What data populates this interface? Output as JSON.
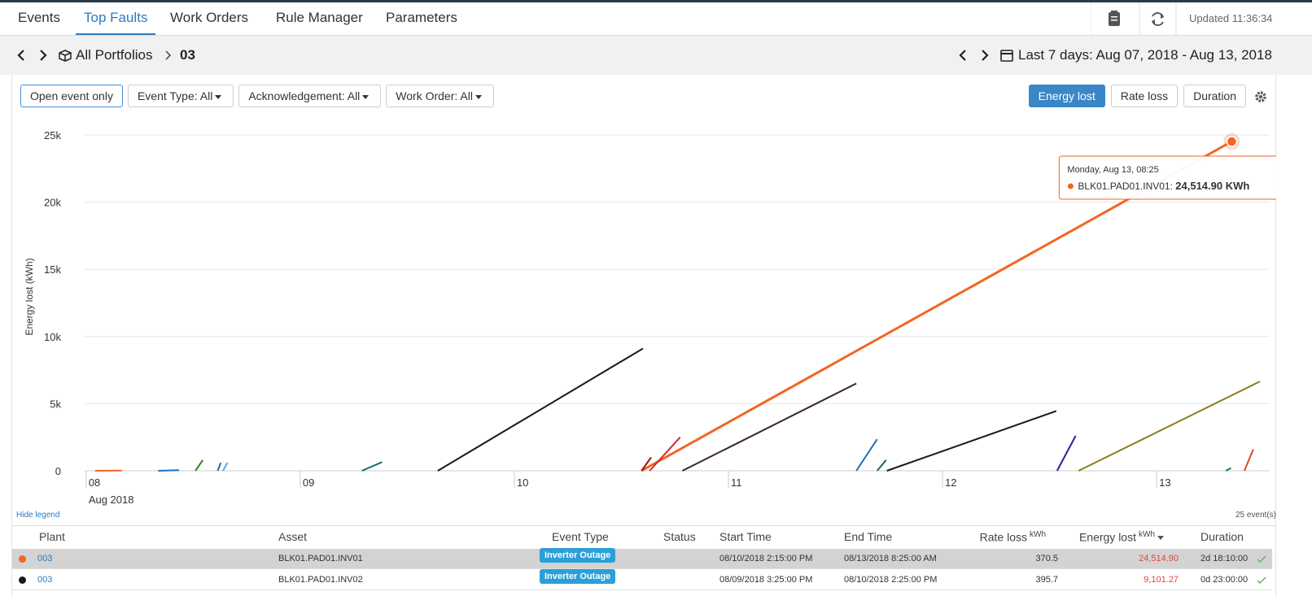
{
  "nav": {
    "tabs": [
      "Events",
      "Top Faults",
      "Work Orders",
      "Rule Manager",
      "Parameters"
    ],
    "active": 1,
    "updated": "Updated 11:36:34"
  },
  "breadcrumb": {
    "root": "All Portfolios",
    "current": "03"
  },
  "date_range": "Last 7 days: Aug 07, 2018 - Aug 13, 2018",
  "filters": [
    "Open event only",
    "Event Type: All",
    "Acknowledgement: All",
    "Work Order: All"
  ],
  "metrics": [
    "Energy lost",
    "Rate loss",
    "Duration"
  ],
  "active_metric": 0,
  "chart_data": {
    "type": "line",
    "ylabel": "Energy lost (kWh)",
    "xlabel": "Aug 2018",
    "xlim": [
      "2018-08-07T23:50",
      "2018-08-13T12:40"
    ],
    "xticks": [
      {
        "value": "2018-08-08T00:00",
        "label": "08"
      },
      {
        "value": "2018-08-09T00:00",
        "label": "09"
      },
      {
        "value": "2018-08-10T00:00",
        "label": "10"
      },
      {
        "value": "2018-08-11T00:00",
        "label": "11"
      },
      {
        "value": "2018-08-12T00:00",
        "label": "12"
      },
      {
        "value": "2018-08-13T00:00",
        "label": "13"
      }
    ],
    "ylim": [
      0,
      25000
    ],
    "yticks": [
      0,
      {
        "value": 5000,
        "label": "5k"
      },
      {
        "value": 10000,
        "label": "10k"
      },
      {
        "value": 15000,
        "label": "15k"
      },
      {
        "value": 20000,
        "label": "20k"
      },
      {
        "value": 25000,
        "label": "25k"
      }
    ],
    "grid": true,
    "series": [
      {
        "name": "BLK01.PAD01.INV01",
        "color": "#f26522",
        "x": [
          "2018-08-10T14:15",
          "2018-08-13T08:25"
        ],
        "values": [
          0,
          24514.9
        ]
      },
      {
        "name": "BLK01.PAD01.INV02",
        "color": "#1a1a1a",
        "x": [
          "2018-08-09T15:25",
          "2018-08-10T14:25"
        ],
        "values": [
          0,
          9101.27
        ]
      },
      {
        "color": "#3b2323",
        "x": [
          "2018-08-10T18:50",
          "2018-08-11T14:20"
        ],
        "values": [
          0,
          6500
        ]
      },
      {
        "color": "#1a1a1a",
        "x": [
          "2018-08-11T17:45",
          "2018-08-12T12:45"
        ],
        "values": [
          0,
          4450
        ]
      },
      {
        "color": "#8b7d1e",
        "x": [
          "2018-08-12T15:15",
          "2018-08-13T11:35"
        ],
        "values": [
          0,
          6650
        ]
      },
      {
        "color": "#3a1a9c",
        "x": [
          "2018-08-12T12:50",
          "2018-08-12T14:55"
        ],
        "values": [
          0,
          2600
        ]
      },
      {
        "color": "#1f6fb5",
        "x": [
          "2018-08-11T14:20",
          "2018-08-11T16:40"
        ],
        "values": [
          0,
          2350
        ]
      },
      {
        "color": "#1a6a4a",
        "x": [
          "2018-08-11T16:40",
          "2018-08-11T17:40"
        ],
        "values": [
          0,
          800
        ]
      },
      {
        "color": "#d62728",
        "x": [
          "2018-08-10T15:10",
          "2018-08-10T18:35"
        ],
        "values": [
          0,
          2500
        ]
      },
      {
        "color": "#a01010",
        "x": [
          "2018-08-10T14:15",
          "2018-08-10T15:20"
        ],
        "values": [
          0,
          1000
        ]
      },
      {
        "color": "#1a6a6a",
        "x": [
          "2018-08-09T06:55",
          "2018-08-09T09:10"
        ],
        "values": [
          0,
          650
        ]
      },
      {
        "color": "#3a7d2a",
        "x": [
          "2018-08-08T12:15",
          "2018-08-08T13:05"
        ],
        "values": [
          0,
          800
        ]
      },
      {
        "color": "#1f6fb5",
        "x": [
          "2018-08-08T14:45",
          "2018-08-08T15:05"
        ],
        "values": [
          0,
          600
        ]
      },
      {
        "color": "#5aa9e6",
        "x": [
          "2018-08-08T15:20",
          "2018-08-08T15:50"
        ],
        "values": [
          0,
          600
        ]
      },
      {
        "color": "#1f6fb5",
        "x": [
          "2018-08-08T08:05",
          "2018-08-08T10:25"
        ],
        "values": [
          0,
          50
        ]
      },
      {
        "color": "#f26522",
        "x": [
          "2018-08-08T01:00",
          "2018-08-08T04:00"
        ],
        "values": [
          0,
          20
        ]
      },
      {
        "color": "#d64a2a",
        "x": [
          "2018-08-13T09:50",
          "2018-08-13T10:50"
        ],
        "values": [
          0,
          1600
        ]
      },
      {
        "color": "#1a8a4a",
        "x": [
          "2018-08-13T07:45",
          "2018-08-13T08:20"
        ],
        "values": [
          0,
          200
        ]
      }
    ],
    "tooltip": {
      "title": "Monday, Aug 13, 08:25",
      "series": "BLK01.PAD01.INV01",
      "value_label": "24,514.90 KWh"
    }
  },
  "legend_toggle": "Hide legend",
  "event_count": "25 event(s)",
  "table": {
    "columns": [
      "Plant",
      "Asset",
      "Event Type",
      "Status",
      "Start Time",
      "End Time",
      {
        "label": "Rate loss",
        "unit": "kWh"
      },
      {
        "label": "Energy lost",
        "unit": "kWh"
      },
      "Duration"
    ],
    "rows": [
      {
        "color": "#f26522",
        "plant": "003",
        "asset": "BLK01.PAD01.INV01",
        "event_type": "Inverter Outage",
        "start": "08/10/2018 2:15:00 PM",
        "end": "08/13/2018 8:25:00 AM",
        "rate_loss": "370.5",
        "energy_lost": "24,514.90",
        "duration": "2d 18:10:00"
      },
      {
        "color": "#1a1a1a",
        "plant": "003",
        "asset": "BLK01.PAD01.INV02",
        "event_type": "Inverter Outage",
        "start": "08/09/2018 3:25:00 PM",
        "end": "08/10/2018 2:25:00 PM",
        "rate_loss": "395.7",
        "energy_lost": "9,101.27",
        "duration": "0d 23:00:00"
      }
    ]
  }
}
